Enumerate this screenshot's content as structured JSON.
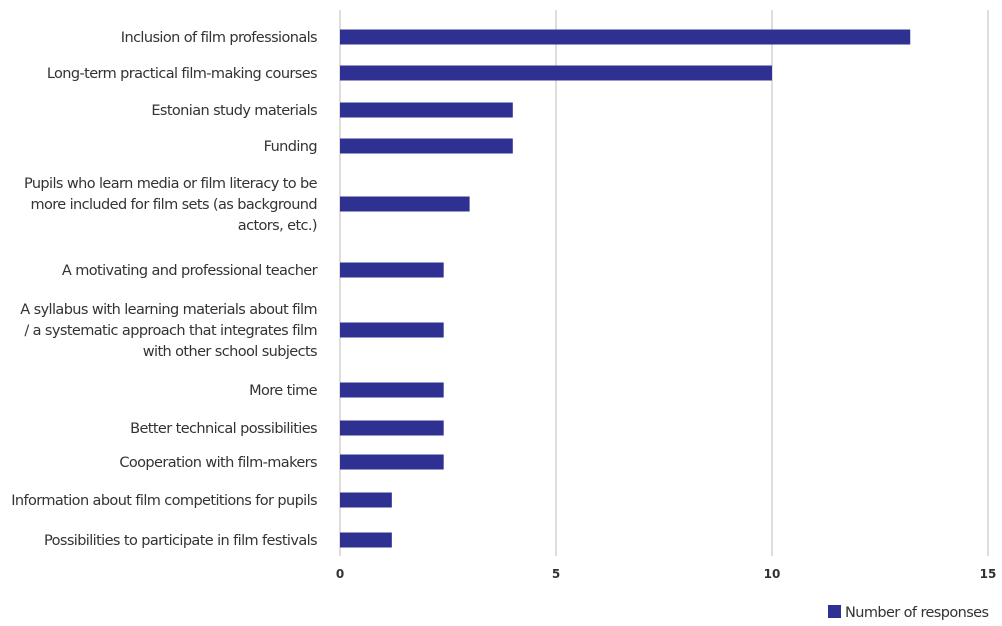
{
  "chart_data": {
    "type": "bar",
    "orientation": "horizontal",
    "categories": [
      "Inclusion of film professionals",
      "Long-term practical film-making courses",
      "Estonian study materials",
      "Funding",
      "Pupils who learn media or film literacy to be more included for film sets (as background actors, etc.)",
      "A motivating and professional teacher",
      "A syllabus with learning materials about film / a systematic approach that integrates film with other school subjects",
      "More time",
      "Better technical possibilities",
      "Cooperation with film-makers",
      "Information about film competitions for pupils",
      "Possibilities to participate in film festivals"
    ],
    "category_lines": [
      [
        "Inclusion of film professionals"
      ],
      [
        "Long-term practical film-making courses"
      ],
      [
        "Estonian study materials"
      ],
      [
        "Funding"
      ],
      [
        "Pupils who learn media or film literacy to be",
        "more included for film sets (as background",
        "actors, etc.)"
      ],
      [
        "A motivating and professional teacher"
      ],
      [
        "A syllabus with learning materials about film",
        "/ a systematic approach that integrates film",
        "with other school subjects"
      ],
      [
        "More time"
      ],
      [
        "Better technical possibilities"
      ],
      [
        "Cooperation with film-makers"
      ],
      [
        "Information about film competitions for pupils"
      ],
      [
        "Possibilities to participate in film festivals"
      ]
    ],
    "series": [
      {
        "name": "Number of responses",
        "color": "#2E3192",
        "values": [
          13.2,
          10,
          4,
          4,
          3,
          2.4,
          2.4,
          2.4,
          2.4,
          2.4,
          1.2,
          1.2
        ]
      }
    ],
    "xlim": [
      0,
      15
    ],
    "xticks": [
      0,
      5,
      10,
      15
    ],
    "xtick_labels": [
      "0",
      "5",
      "10",
      "15"
    ],
    "grid": "vertical",
    "gridline_color": "#BBBBBB",
    "legend": {
      "position": "bottom-right",
      "label": "Number of responses"
    }
  }
}
